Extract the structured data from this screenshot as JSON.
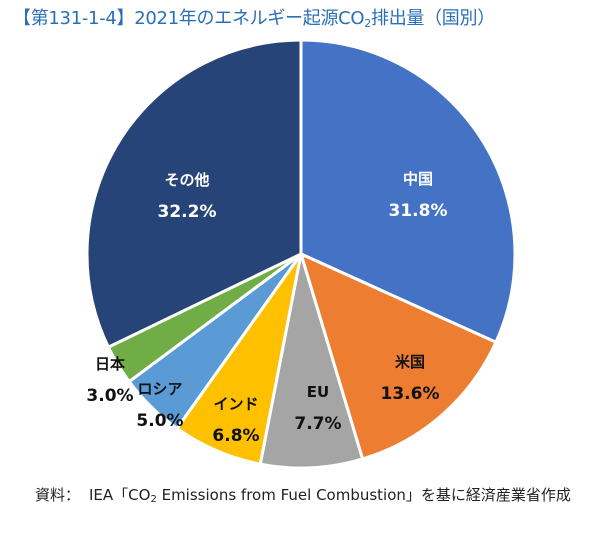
{
  "title": {
    "prefix": "【第131-1-4】2021年のエネルギー起源CO",
    "sub": "2",
    "suffix": "排出量（国別）"
  },
  "source": {
    "label": "資料：",
    "pre": "IEA「CO",
    "sub": "2",
    "post": " Emissions from Fuel Combustion」を基に経済産業省作成"
  },
  "chart_data": {
    "type": "pie",
    "title": "2021年のエネルギー起源CO2排出量（国別）",
    "unit": "%",
    "start": "12 o'clock",
    "direction": "clockwise",
    "categories": [
      "中国",
      "米国",
      "EU",
      "インド",
      "ロシア",
      "日本",
      "その他"
    ],
    "values": [
      31.8,
      13.6,
      7.7,
      6.8,
      5.0,
      3.0,
      32.2
    ],
    "labels": [
      "31.8%",
      "13.6%",
      "7.7%",
      "6.8%",
      "5.0%",
      "3.0%",
      "32.2%"
    ],
    "colors": [
      "#4472c4",
      "#ed7d31",
      "#a5a5a5",
      "#ffc000",
      "#5b9bd5",
      "#70ad47",
      "#264478"
    ],
    "label_colors": [
      "#ffffff",
      "#111111",
      "#111111",
      "#111111",
      "#111111",
      "#111111",
      "#ffffff"
    ]
  }
}
